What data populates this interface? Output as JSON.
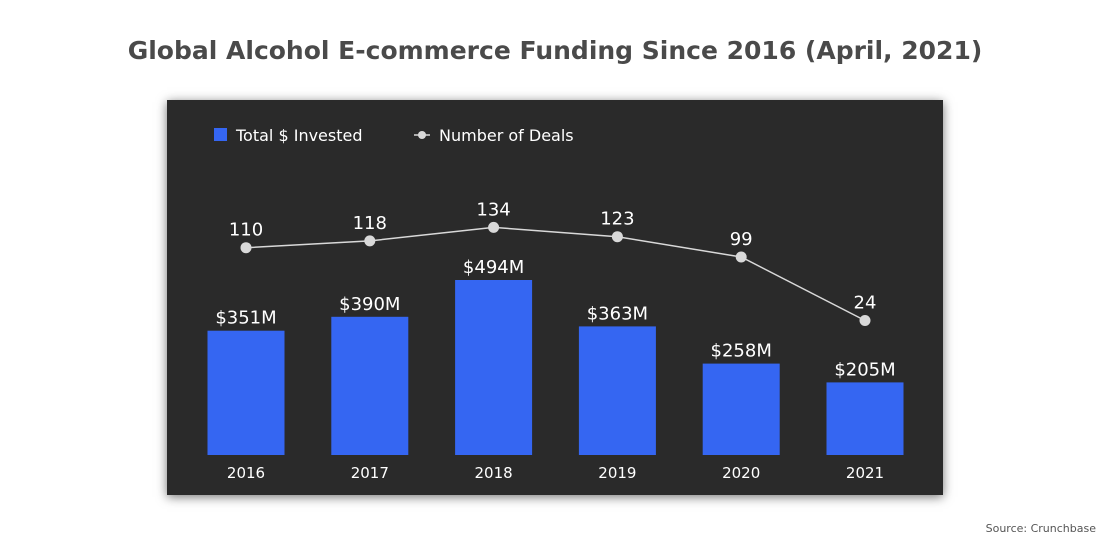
{
  "title": "Global Alcohol E-commerce Funding Since 2016 (April, 2021)",
  "source": "Source: Crunchbase",
  "colors": {
    "panel_background": "#2a2a2a",
    "bar": "#3566f2",
    "line": "#d9d9d9",
    "text": "#ffffff"
  },
  "chart_data": {
    "type": "bar",
    "categories": [
      "2016",
      "2017",
      "2018",
      "2019",
      "2020",
      "2021"
    ],
    "series": [
      {
        "name": "Total $ Invested",
        "type": "bar",
        "unit": "$M",
        "values": [
          351,
          390,
          494,
          363,
          258,
          205
        ],
        "labels": [
          "$351M",
          "$390M",
          "$494M",
          "$363M",
          "$258M",
          "$205M"
        ]
      },
      {
        "name": "Number of Deals",
        "type": "line",
        "values": [
          110,
          118,
          134,
          123,
          99,
          24
        ],
        "labels": [
          "110",
          "118",
          "134",
          "123",
          "99",
          "24"
        ]
      }
    ],
    "legend": {
      "placement": "top-left",
      "items": [
        {
          "label": "Total $ Invested",
          "marker": "square"
        },
        {
          "label": "Number of Deals",
          "marker": "line-dot"
        }
      ]
    },
    "grid": false
  }
}
